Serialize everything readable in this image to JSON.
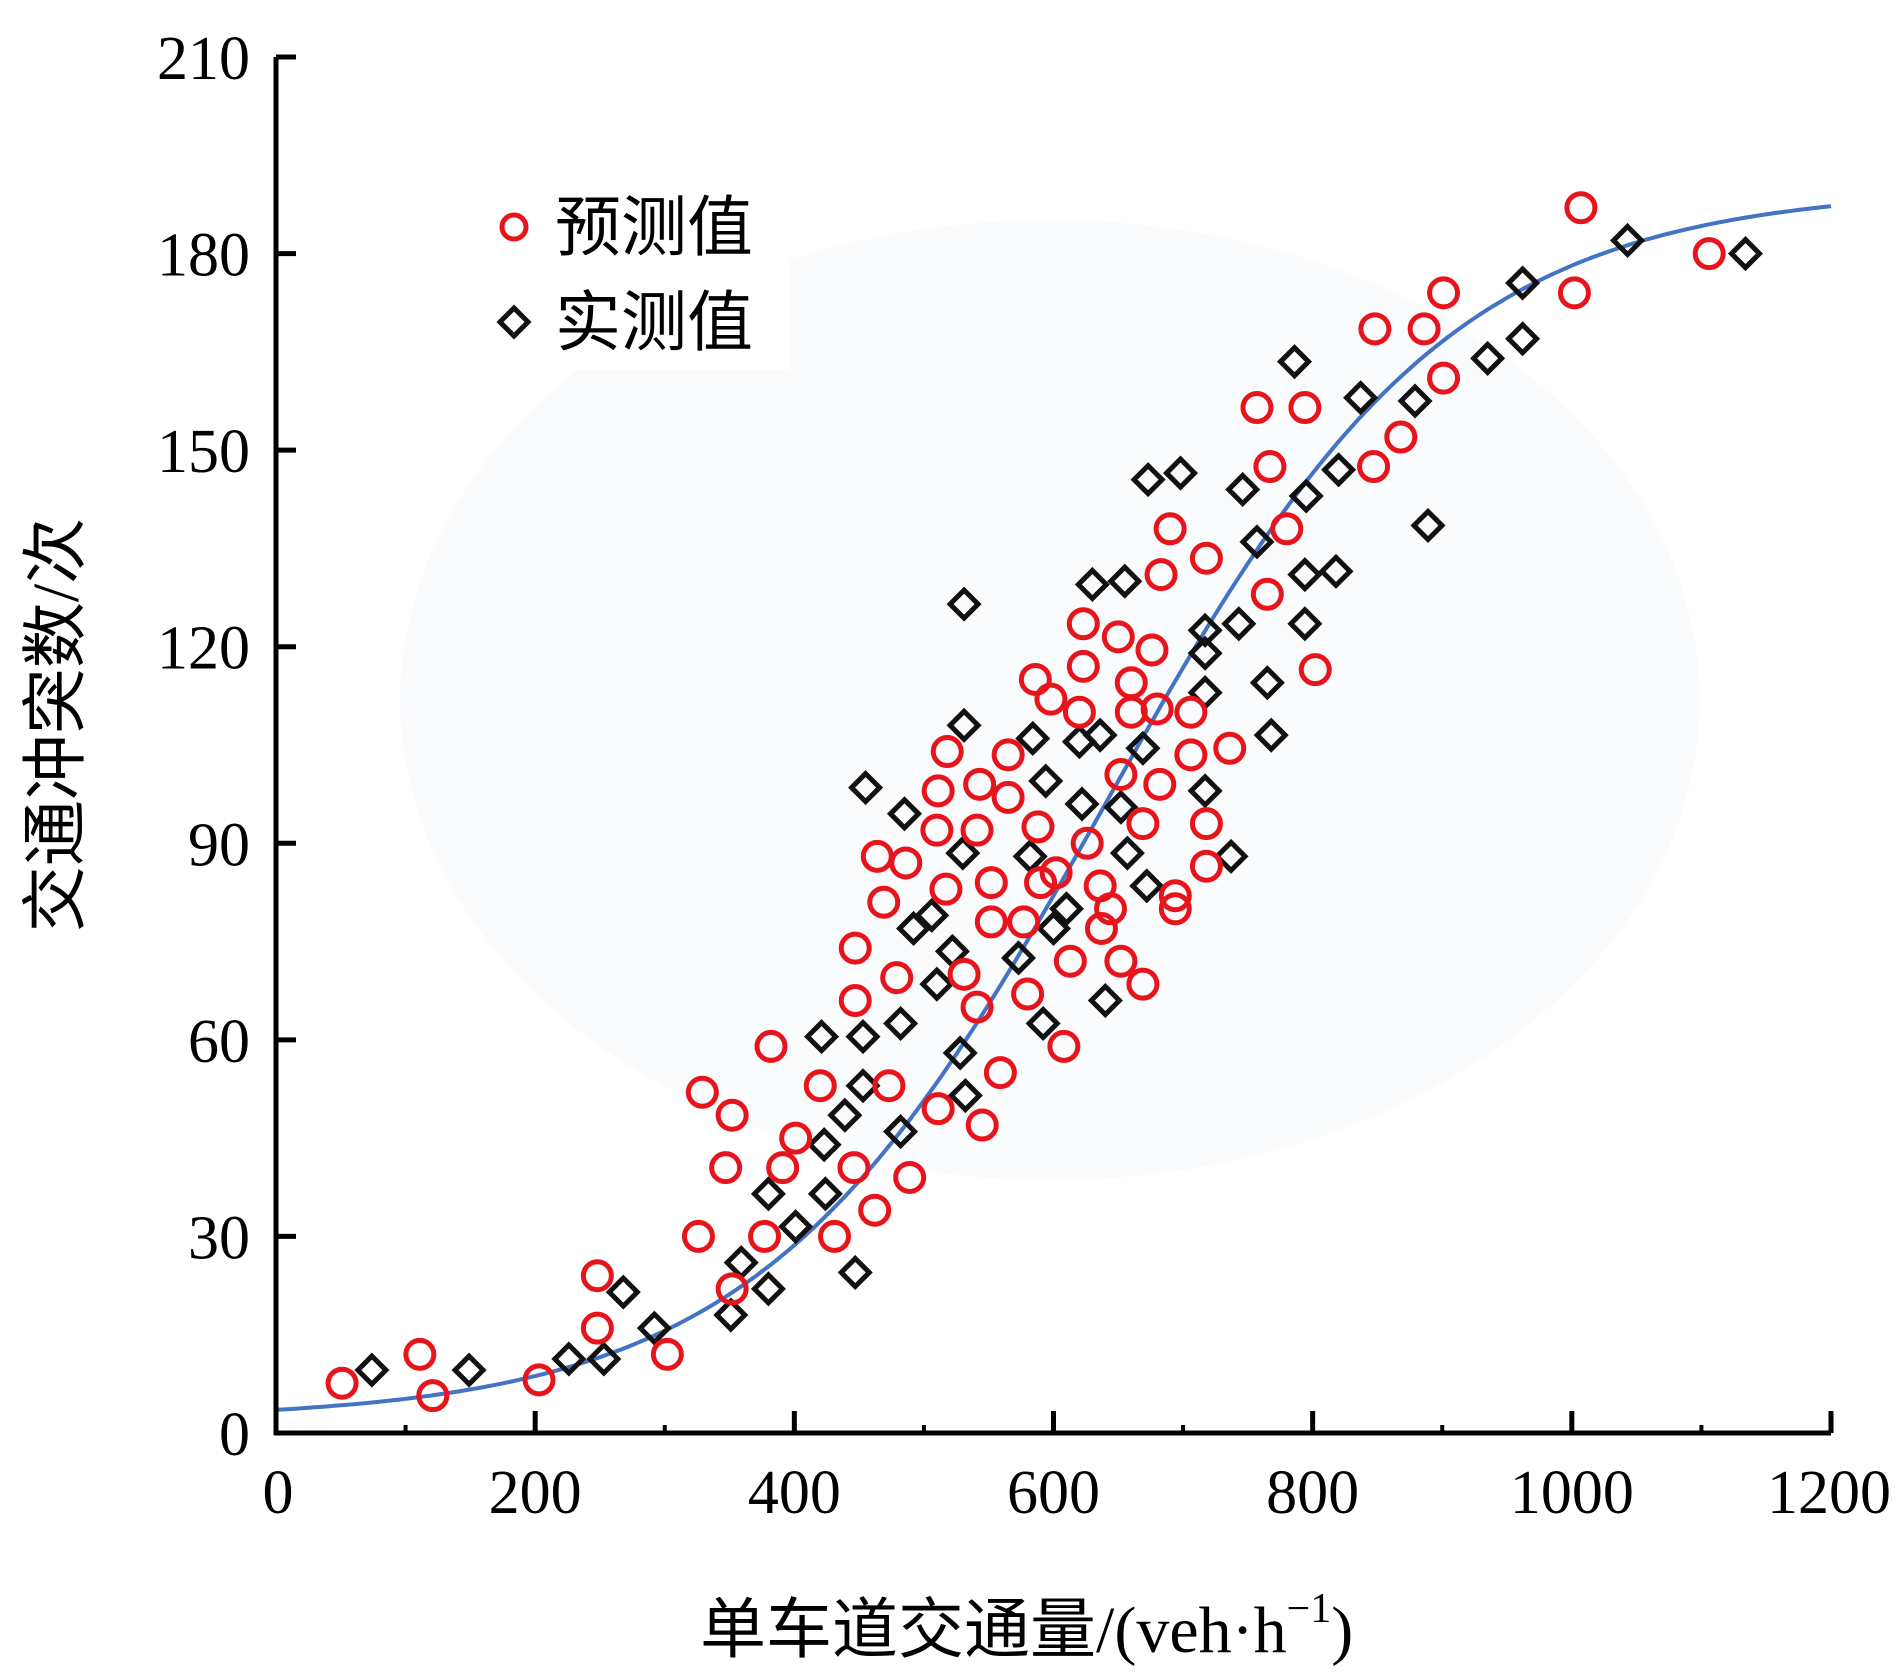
{
  "chart_data": {
    "type": "scatter",
    "title": "",
    "xlabel": "单车道交通量/(veh·h",
    "xlabel_superscript": "−1",
    "xlabel_close": ")",
    "ylabel": "交通冲突数/次",
    "xlim": [
      0,
      1200
    ],
    "ylim": [
      0,
      210
    ],
    "xticks": [
      "0",
      "200",
      "400",
      "600",
      "800",
      "1000",
      "1200"
    ],
    "yticks": [
      "0",
      "30",
      "60",
      "90",
      "120",
      "150",
      "180",
      "210"
    ],
    "xtick_values": [
      0,
      200,
      400,
      600,
      800,
      1000,
      1200
    ],
    "ytick_values": [
      0,
      30,
      60,
      90,
      120,
      150,
      180,
      210
    ],
    "grid": false,
    "legend_position": "top-left",
    "colors": {
      "predicted": "#e8141b",
      "measured": "#111111",
      "fit": "#4472c4",
      "axis": "#000000"
    },
    "series": [
      {
        "name": "预测值",
        "marker": "circle",
        "points": [
          [
            51,
            7.6
          ],
          [
            111,
            12
          ],
          [
            121,
            5.7
          ],
          [
            203,
            8.1
          ],
          [
            248,
            24
          ],
          [
            248,
            16
          ],
          [
            302,
            12
          ],
          [
            326,
            30
          ],
          [
            329,
            52
          ],
          [
            347,
            40.5
          ],
          [
            352,
            48.5
          ],
          [
            352,
            22
          ],
          [
            377,
            30
          ],
          [
            382,
            59
          ],
          [
            391,
            40.5
          ],
          [
            401,
            45
          ],
          [
            420,
            53
          ],
          [
            431,
            30
          ],
          [
            446,
            40.5
          ],
          [
            447,
            74
          ],
          [
            447,
            66
          ],
          [
            462,
            34
          ],
          [
            464,
            88
          ],
          [
            469,
            81
          ],
          [
            473,
            53
          ],
          [
            479,
            69.5
          ],
          [
            486,
            87
          ],
          [
            489,
            39
          ],
          [
            510,
            92
          ],
          [
            511,
            98
          ],
          [
            511,
            49.5
          ],
          [
            517,
            83
          ],
          [
            518,
            104
          ],
          [
            531,
            70
          ],
          [
            541,
            65
          ],
          [
            541,
            92
          ],
          [
            543,
            99
          ],
          [
            545,
            47
          ],
          [
            552,
            84
          ],
          [
            552,
            78
          ],
          [
            559,
            55
          ],
          [
            565,
            97
          ],
          [
            565,
            103.5
          ],
          [
            577,
            78
          ],
          [
            580,
            67
          ],
          [
            586,
            115
          ],
          [
            588,
            92.5
          ],
          [
            590,
            84
          ],
          [
            598,
            112
          ],
          [
            602,
            85.5
          ],
          [
            608,
            59
          ],
          [
            613,
            72
          ],
          [
            620,
            110
          ],
          [
            623,
            123.5
          ],
          [
            623,
            117
          ],
          [
            626,
            90
          ],
          [
            636,
            83.5
          ],
          [
            637,
            77
          ],
          [
            644,
            80
          ],
          [
            650,
            121.5
          ],
          [
            652,
            100.5
          ],
          [
            652,
            72
          ],
          [
            660,
            114.5
          ],
          [
            660,
            110
          ],
          [
            669,
            93
          ],
          [
            669,
            68.5
          ],
          [
            676,
            119.5
          ],
          [
            680,
            110.5
          ],
          [
            682,
            99
          ],
          [
            683,
            131
          ],
          [
            690,
            138
          ],
          [
            694,
            80
          ],
          [
            694,
            82
          ],
          [
            706,
            110
          ],
          [
            706,
            103.5
          ],
          [
            718,
            133.5
          ],
          [
            718,
            93
          ],
          [
            718,
            86.5
          ],
          [
            736,
            104.5
          ],
          [
            757,
            156.5
          ],
          [
            765,
            128
          ],
          [
            767,
            147.5
          ],
          [
            780,
            138
          ],
          [
            794,
            156.5
          ],
          [
            802,
            116.5
          ],
          [
            847,
            147.5
          ],
          [
            848,
            168.5
          ],
          [
            868,
            152
          ],
          [
            886,
            168.5
          ],
          [
            901,
            161
          ],
          [
            901,
            174
          ],
          [
            1002,
            174
          ],
          [
            1007,
            187
          ],
          [
            1106,
            180
          ]
        ]
      },
      {
        "name": "实测值",
        "marker": "diamond",
        "points": [
          [
            74,
            9.6
          ],
          [
            149,
            9.6
          ],
          [
            226,
            11.3
          ],
          [
            253,
            11.3
          ],
          [
            268,
            21.5
          ],
          [
            292,
            16
          ],
          [
            351,
            18
          ],
          [
            359,
            26
          ],
          [
            380,
            22
          ],
          [
            380,
            36.5
          ],
          [
            401,
            31.5
          ],
          [
            421,
            60.5
          ],
          [
            423,
            44
          ],
          [
            424,
            36.5
          ],
          [
            439,
            48.5
          ],
          [
            447,
            24.5
          ],
          [
            453,
            60.5
          ],
          [
            455,
            98.5
          ],
          [
            453,
            53
          ],
          [
            482,
            62.5
          ],
          [
            482,
            46
          ],
          [
            485,
            94.5
          ],
          [
            492,
            77
          ],
          [
            506,
            79
          ],
          [
            510,
            68.5
          ],
          [
            522,
            73.5
          ],
          [
            528,
            58
          ],
          [
            531,
            126.5
          ],
          [
            531,
            108
          ],
          [
            530,
            88.5
          ],
          [
            532,
            51.5
          ],
          [
            573,
            72.5
          ],
          [
            584,
            106
          ],
          [
            582,
            88
          ],
          [
            592,
            62.5
          ],
          [
            594,
            99.5
          ],
          [
            600,
            77
          ],
          [
            610,
            80
          ],
          [
            620,
            105.5
          ],
          [
            622,
            96
          ],
          [
            630,
            129.5
          ],
          [
            636,
            106.5
          ],
          [
            640,
            66
          ],
          [
            652,
            95.5
          ],
          [
            657,
            88.5
          ],
          [
            655,
            130
          ],
          [
            669,
            104.5
          ],
          [
            672,
            83.5
          ],
          [
            673,
            145.5
          ],
          [
            698,
            146.5
          ],
          [
            717,
            122.5
          ],
          [
            717,
            119
          ],
          [
            717,
            113
          ],
          [
            717,
            98
          ],
          [
            737,
            88
          ],
          [
            743,
            123.5
          ],
          [
            746,
            144
          ],
          [
            757,
            136
          ],
          [
            765,
            114.5
          ],
          [
            768,
            106.5
          ],
          [
            786,
            163.5
          ],
          [
            795,
            143
          ],
          [
            794,
            131
          ],
          [
            794,
            123.5
          ],
          [
            820,
            147
          ],
          [
            818,
            131.5
          ],
          [
            837,
            158
          ],
          [
            879,
            157.5
          ],
          [
            889,
            138.5
          ],
          [
            935,
            164
          ],
          [
            962,
            167
          ],
          [
            962,
            175.5
          ],
          [
            1043,
            182
          ],
          [
            1134,
            180
          ]
        ]
      },
      {
        "name": "fit",
        "type": "line",
        "model": "logistic",
        "params": {
          "K": 188,
          "r": 0.0075,
          "x0": 640
        },
        "x": [
          0,
          100,
          200,
          300,
          400,
          500,
          600,
          700,
          800,
          900,
          1000,
          1100,
          1200
        ],
        "y": [
          3.1,
          6.5,
          12.5,
          21.5,
          37,
          60,
          93,
          128,
          155,
          170,
          178,
          183,
          185.5
        ]
      }
    ]
  }
}
